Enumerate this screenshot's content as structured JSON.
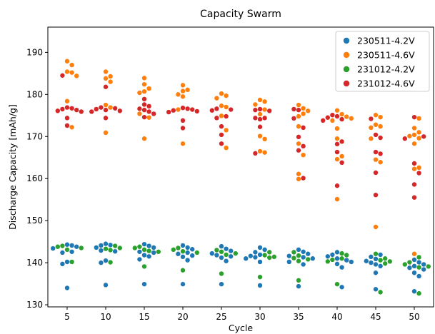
{
  "chart_data": {
    "type": "scatter",
    "title": "Capacity Swarm",
    "xlabel": "Cycle",
    "ylabel": "Discharge Capacity [mAh/g]",
    "categories": [
      "5",
      "10",
      "15",
      "20",
      "25",
      "30",
      "35",
      "40",
      "45",
      "50"
    ],
    "ylim": [
      129.5,
      196
    ],
    "yticks": [
      130,
      140,
      150,
      160,
      170,
      180,
      190
    ],
    "grid": false,
    "legend_position": "top-right",
    "series": [
      {
        "name": "230511-4.2V",
        "color": "#1f77b4",
        "values": [
          [
            144.3,
            143.8,
            143.4,
            142.6,
            142.4,
            144.1,
            140.2,
            139.7,
            134.0
          ],
          [
            144.5,
            144.1,
            143.6,
            142.9,
            142.7,
            144.2,
            140.5,
            140.0,
            134.7
          ],
          [
            144.4,
            144.0,
            143.6,
            142.6,
            142.4,
            141.8,
            141.5,
            140.8,
            134.9
          ],
          [
            144.1,
            143.6,
            143.2,
            142.4,
            142.1,
            141.7,
            141.4,
            140.6,
            134.9
          ],
          [
            143.9,
            143.3,
            142.8,
            142.2,
            141.8,
            141.5,
            141.2,
            140.4,
            134.9
          ],
          [
            143.6,
            143.1,
            142.5,
            141.9,
            141.6,
            141.3,
            141.0,
            140.2,
            134.6
          ],
          [
            143.1,
            142.6,
            142.1,
            141.6,
            141.3,
            141.0,
            140.2,
            139.6,
            134.4
          ],
          [
            142.5,
            141.9,
            141.5,
            141.0,
            140.6,
            140.2,
            139.7,
            138.9,
            134.2
          ],
          [
            141.9,
            141.4,
            140.9,
            140.4,
            140.0,
            139.6,
            139.2,
            137.6,
            133.7
          ],
          [
            140.7,
            140.1,
            139.6,
            139.2,
            138.8,
            138.4,
            137.6,
            136.8,
            133.2
          ]
        ]
      },
      {
        "name": "230511-4.6V",
        "color": "#ff7f0e",
        "values": [
          [
            187.9,
            187.0,
            185.4,
            185.2,
            184.4,
            178.4,
            172.2
          ],
          [
            185.4,
            184.3,
            183.8,
            183.0,
            177.5,
            176.9,
            170.9
          ],
          [
            183.9,
            182.4,
            181.4,
            180.7,
            180.4,
            175.4,
            174.5,
            169.5
          ],
          [
            182.2,
            181.1,
            180.8,
            180.0,
            179.5,
            176.4,
            168.3
          ],
          [
            180.2,
            179.7,
            179.1,
            177.3,
            177.0,
            174.9,
            171.5,
            167.3
          ],
          [
            178.7,
            178.3,
            177.6,
            176.4,
            175.3,
            170.1,
            169.4,
            166.5,
            166.2
          ],
          [
            177.5,
            176.7,
            176.1,
            175.4,
            174.8,
            172.4,
            168.3,
            165.6,
            161.1,
            159.9
          ],
          [
            176.2,
            175.3,
            174.7,
            174.3,
            173.8,
            171.9,
            169.5,
            165.3,
            164.6,
            155.1
          ],
          [
            175.1,
            174.6,
            172.8,
            172.4,
            172.1,
            169.5,
            164.5,
            163.9,
            148.5
          ],
          [
            174.3,
            172.0,
            171.0,
            170.4,
            170.1,
            169.6,
            168.3,
            162.6,
            162.3,
            142.1
          ]
        ]
      },
      {
        "name": "231012-4.2V",
        "color": "#2ca02c",
        "values": [
          [
            144.0,
            143.8,
            143.5,
            143.1,
            140.2
          ],
          [
            144.0,
            143.5,
            143.3,
            143.0,
            140.1
          ],
          [
            143.8,
            143.5,
            143.1,
            142.8,
            142.6,
            139.1
          ],
          [
            143.5,
            143.1,
            142.7,
            142.4,
            138.2
          ],
          [
            143.0,
            142.6,
            142.2,
            141.9,
            137.4
          ],
          [
            142.5,
            141.8,
            141.4,
            141.2,
            136.6
          ],
          [
            142.5,
            141.7,
            141.1,
            140.8,
            140.4,
            135.8
          ],
          [
            142.2,
            141.8,
            141.0,
            140.7,
            140.3,
            134.9
          ],
          [
            142.1,
            141.0,
            140.6,
            140.3,
            139.8,
            133.0
          ],
          [
            141.3,
            140.1,
            139.6,
            139.1,
            138.9,
            132.7
          ]
        ]
      },
      {
        "name": "231012-4.6V",
        "color": "#d62728",
        "values": [
          [
            184.5,
            176.9,
            176.7,
            176.5,
            176.3,
            176.1,
            175.9,
            174.4,
            172.6
          ],
          [
            176.9,
            176.7,
            176.5,
            176.3,
            176.1,
            175.9,
            174.4,
            181.8
          ],
          [
            177.6,
            177.2,
            176.6,
            176.3,
            175.9,
            175.4,
            174.6,
            178.9
          ],
          [
            176.8,
            176.6,
            176.4,
            176.2,
            176.0,
            175.8,
            173.8,
            172.0
          ],
          [
            176.6,
            176.4,
            176.2,
            174.4,
            172.4,
            170.4,
            168.3,
            174.8
          ],
          [
            176.5,
            176.3,
            176.1,
            174.4,
            174.4,
            174.1,
            172.3,
            166.0
          ],
          [
            176.5,
            176.3,
            174.3,
            172.1,
            169.9,
            167.7,
            166.7,
            160.1
          ],
          [
            175.1,
            174.8,
            174.5,
            174.1,
            173.8,
            168.8,
            168.2,
            166.3,
            163.8,
            158.3
          ],
          [
            174.2,
            170.4,
            169.7,
            166.3,
            165.9,
            161.4,
            156.1
          ],
          [
            174.6,
            170.0,
            169.5,
            163.6,
            161.3,
            158.6,
            155.5
          ]
        ]
      }
    ]
  }
}
